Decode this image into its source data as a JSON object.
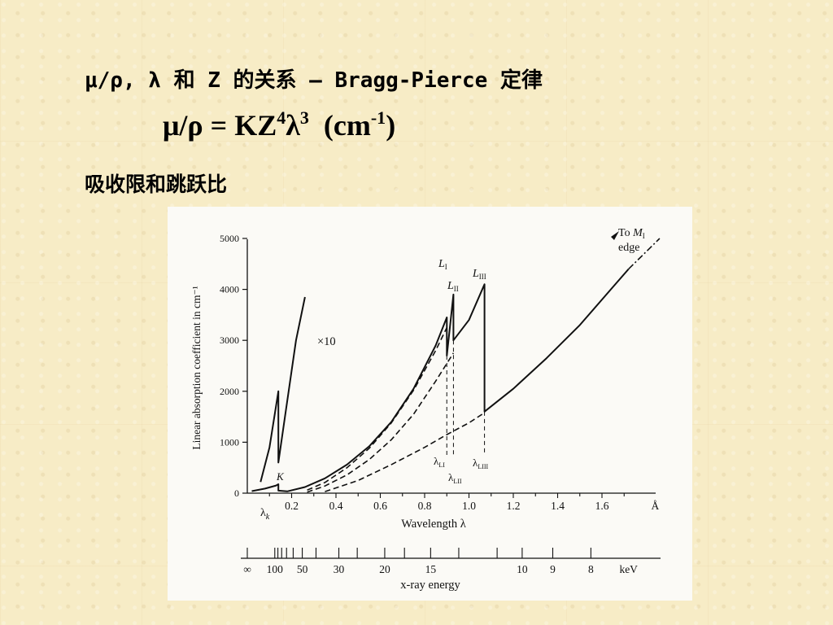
{
  "slide": {
    "heading": "μ/ρ, λ 和 Z 的关系 – Bragg-Pierce 定律",
    "formula": {
      "main": "μ/ρ = KZ",
      "sup1": "4",
      "lambda": "λ",
      "sup2": "3",
      "unit_open": "  (cm",
      "unit_sup": "-1",
      "unit_close": ")"
    },
    "subheading": "吸收限和跳跃比"
  },
  "chart_data": {
    "type": "line",
    "ylabel": "Linear absorption coefficient in cm⁻¹",
    "xlabel": "Wavelength λ",
    "xlim": [
      0,
      1.8
    ],
    "ylim": [
      0,
      5000
    ],
    "x_ticks": [
      "0.2",
      "0.4",
      "0.6",
      "0.8",
      "1.0",
      "1.2",
      "1.4",
      "1.6",
      "Å"
    ],
    "y_ticks": [
      "0",
      "1000",
      "2000",
      "3000",
      "4000",
      "5000"
    ],
    "energy_axis": {
      "label": "x-ray energy",
      "ticks": [
        {
          "label": "∞",
          "wavelength": 0
        },
        {
          "label": "100",
          "wavelength": 0.124
        },
        {
          "label": "50",
          "wavelength": 0.248
        },
        {
          "label": "30",
          "wavelength": 0.413
        },
        {
          "label": "20",
          "wavelength": 0.62
        },
        {
          "label": "15",
          "wavelength": 0.827
        },
        {
          "label": "10",
          "wavelength": 1.24
        },
        {
          "label": "9",
          "wavelength": 1.378
        },
        {
          "label": "8",
          "wavelength": 1.55
        },
        {
          "label": "keV",
          "wavelength": 1.72
        }
      ]
    },
    "series": [
      {
        "style": "solid",
        "points": [
          [
            0.02,
            40
          ],
          [
            0.08,
            90
          ],
          [
            0.13,
            150
          ],
          [
            0.14,
            175
          ],
          [
            0.14,
            50
          ],
          [
            0.18,
            35
          ],
          [
            0.26,
            120
          ],
          [
            0.35,
            290
          ],
          [
            0.45,
            560
          ],
          [
            0.55,
            920
          ],
          [
            0.65,
            1400
          ],
          [
            0.75,
            2050
          ],
          [
            0.85,
            2900
          ],
          [
            0.9,
            3450
          ],
          [
            0.9,
            2700
          ],
          [
            0.93,
            3900
          ],
          [
            0.93,
            3000
          ],
          [
            1.0,
            3400
          ],
          [
            1.07,
            4100
          ],
          [
            1.07,
            1600
          ],
          [
            1.2,
            2050
          ],
          [
            1.35,
            2650
          ],
          [
            1.5,
            3300
          ],
          [
            1.65,
            4050
          ],
          [
            1.72,
            4400
          ]
        ]
      },
      {
        "style": "solid-x10",
        "points": [
          [
            0.06,
            220
          ],
          [
            0.1,
            900
          ],
          [
            0.14,
            2000
          ],
          [
            0.14,
            600
          ],
          [
            0.17,
            1500
          ],
          [
            0.22,
            3000
          ],
          [
            0.26,
            3850
          ]
        ]
      },
      {
        "style": "dashed",
        "points": [
          [
            0.27,
            60
          ],
          [
            0.35,
            210
          ],
          [
            0.45,
            500
          ],
          [
            0.55,
            880
          ],
          [
            0.65,
            1380
          ],
          [
            0.75,
            2020
          ],
          [
            0.85,
            2800
          ],
          [
            0.9,
            3250
          ]
        ]
      },
      {
        "style": "dashed",
        "points": [
          [
            0.27,
            20
          ],
          [
            0.35,
            140
          ],
          [
            0.45,
            360
          ],
          [
            0.55,
            660
          ],
          [
            0.65,
            1050
          ],
          [
            0.75,
            1550
          ],
          [
            0.85,
            2200
          ],
          [
            0.93,
            2750
          ]
        ]
      },
      {
        "style": "dashed",
        "points": [
          [
            0.35,
            30
          ],
          [
            0.5,
            250
          ],
          [
            0.65,
            560
          ],
          [
            0.8,
            900
          ],
          [
            0.9,
            1150
          ],
          [
            1.0,
            1380
          ],
          [
            1.07,
            1580
          ]
        ]
      },
      {
        "style": "dash-dot",
        "points": [
          [
            1.72,
            4400
          ],
          [
            1.86,
            5000
          ]
        ]
      }
    ],
    "edge_markers": [
      {
        "x": 0.9,
        "y_top": 2700,
        "style": "dashed"
      },
      {
        "x": 0.93,
        "y_top": 3000,
        "style": "dashed"
      },
      {
        "x": 1.07,
        "y_top": 1600,
        "style": "dashed"
      }
    ],
    "annotations": {
      "k_edge": "K",
      "lambda_k": "λ",
      "lambda_k_sub": "k",
      "times_ten": "×10",
      "l1": "L",
      "l1_sub": "I",
      "l2": "L",
      "l2_sub": "II",
      "l3": "L",
      "l3_sub": "III",
      "lambda_l1": "λ",
      "lambda_l1_sub": "LI",
      "lambda_l2": "λ",
      "lambda_l2_sub": "LII",
      "lambda_l3": "λ",
      "lambda_l3_sub": "LIII",
      "to_m_line1_prefix": "To ",
      "to_m_line1_m": "M",
      "to_m_line1_sub": "I",
      "to_m_line2": "edge"
    }
  }
}
